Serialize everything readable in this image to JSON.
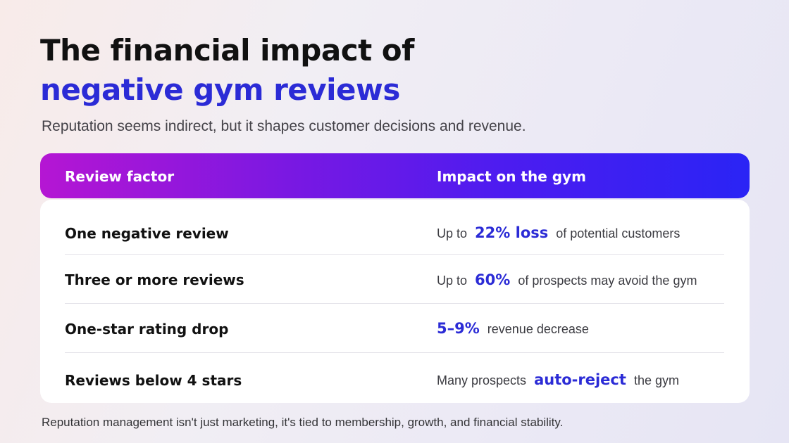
{
  "title": {
    "line1": "The financial impact of",
    "line2": "negative gym reviews"
  },
  "subtitle": "Reputation seems indirect, but it shapes customer decisions and revenue.",
  "table": {
    "headers": [
      "Review factor",
      "Impact on the gym"
    ],
    "rows": [
      {
        "factor": "One negative review",
        "pre": "Up to",
        "highlight": "22% loss",
        "post": "of potential customers"
      },
      {
        "factor": "Three or more reviews",
        "pre": "Up to",
        "highlight": "60%",
        "post": "of prospects may avoid the gym"
      },
      {
        "factor": "One-star rating drop",
        "pre": "",
        "highlight": "5–9%",
        "post": "revenue decrease"
      },
      {
        "factor": "Reviews below 4 stars",
        "pre": "Many prospects",
        "highlight": "auto-reject",
        "post": "the gym"
      }
    ]
  },
  "footer": "Reputation management isn't just marketing, it's tied to membership, growth, and financial stability.",
  "colors": {
    "accent": "#2b2bd6",
    "header_gradient_start": "#b516d3",
    "header_gradient_end": "#2a24f5"
  }
}
